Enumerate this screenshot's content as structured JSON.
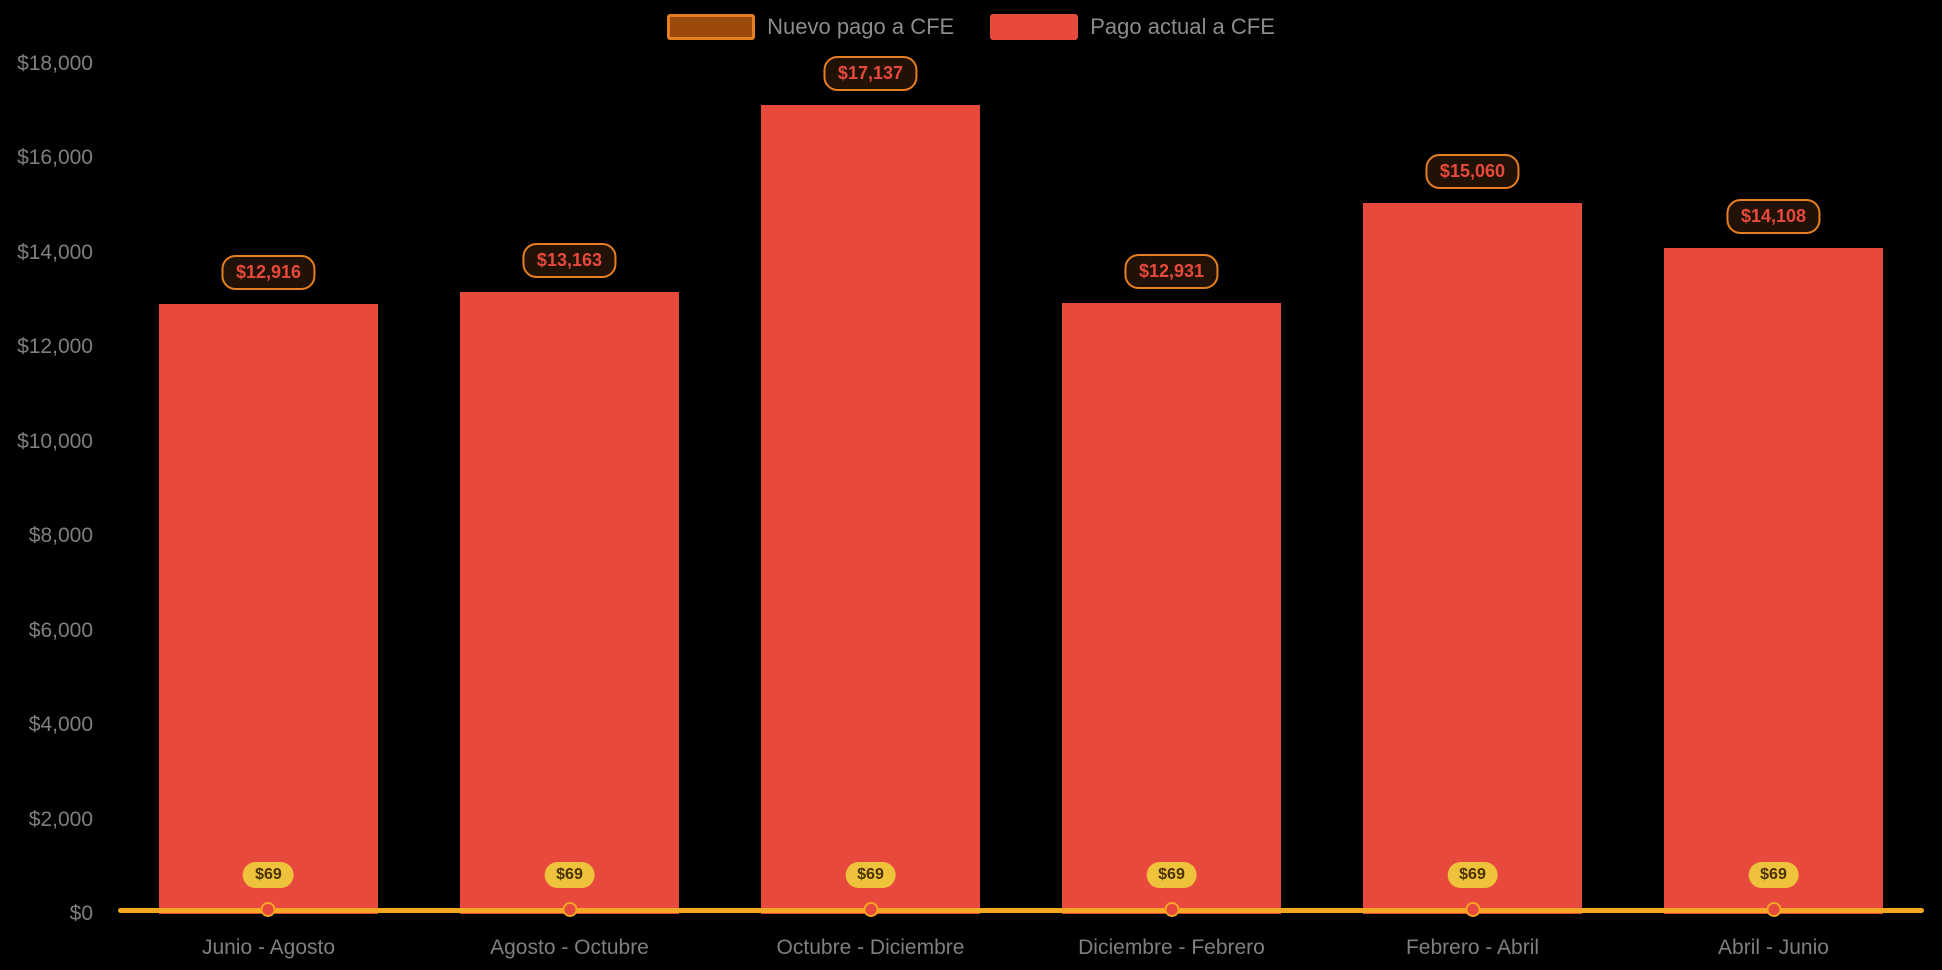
{
  "chart_data": {
    "type": "bar",
    "categories": [
      "Junio - Agosto",
      "Agosto - Octubre",
      "Octubre - Diciembre",
      "Diciembre - Febrero",
      "Febrero - Abril",
      "Abril - Junio"
    ],
    "series": [
      {
        "name": "Nuevo pago a CFE",
        "type": "line",
        "values": [
          69,
          69,
          69,
          69,
          69,
          69
        ],
        "labels": [
          "$69",
          "$69",
          "$69",
          "$69",
          "$69",
          "$69"
        ],
        "color": "#F5A623",
        "marker_color": "#E8493D"
      },
      {
        "name": "Pago actual a CFE",
        "type": "bar",
        "values": [
          12916,
          13163,
          17137,
          12931,
          15060,
          14108
        ],
        "labels": [
          "$12,916",
          "$13,163",
          "$17,137",
          "$12,931",
          "$15,060",
          "$14,108"
        ],
        "color": "#E8493D"
      }
    ],
    "ylim": [
      0,
      18000
    ],
    "yticks": [
      {
        "value": 0,
        "label": "$0"
      },
      {
        "value": 2000,
        "label": "$2,000"
      },
      {
        "value": 4000,
        "label": "$4,000"
      },
      {
        "value": 6000,
        "label": "$6,000"
      },
      {
        "value": 8000,
        "label": "$8,000"
      },
      {
        "value": 10000,
        "label": "$10,000"
      },
      {
        "value": 12000,
        "label": "$12,000"
      },
      {
        "value": 14000,
        "label": "$14,000"
      },
      {
        "value": 16000,
        "label": "$16,000"
      },
      {
        "value": 18000,
        "label": "$18,000"
      }
    ],
    "grid": false,
    "legend_position": "top",
    "background": "#000000"
  },
  "legend": {
    "items": [
      {
        "label": "Nuevo pago a CFE",
        "swatch_fill": "#9C4A0C",
        "swatch_border": "#E67E22"
      },
      {
        "label": "Pago actual a CFE",
        "swatch_fill": "#E8493D",
        "swatch_border": "#E8493D"
      }
    ]
  },
  "styles": {
    "bar_value_badge_bg": "#211205",
    "bar_value_badge_border": "#E67E22",
    "bar_value_badge_text": "#E8493D",
    "line_value_pill_bg": "#EFC23B",
    "line_value_pill_text": "#4A3205",
    "axis_text": "#7F7F7F",
    "legend_text": "#8C8C8C"
  }
}
